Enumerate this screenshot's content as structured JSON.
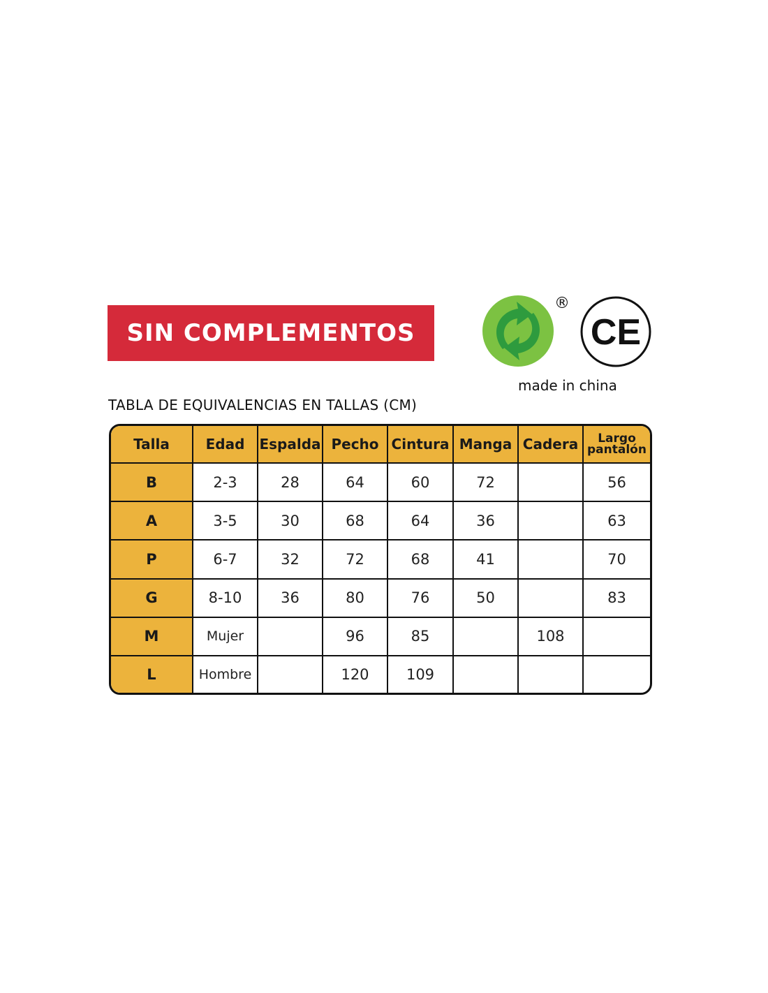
{
  "banner": {
    "label": "SIN COMPLEMENTOS",
    "color": "#d52a3a"
  },
  "logos": {
    "green_dot": {
      "icon": "green-dot-recycling-icon",
      "registered": "®"
    },
    "ce": {
      "icon": "ce-mark-icon",
      "label": "CE"
    },
    "origin": "made in china"
  },
  "table_title": "TABLA DE EQUIVALENCIAS EN TALLAS (CM)",
  "table": {
    "header_color": "#ecb33c",
    "headers": [
      "Talla",
      "Edad",
      "Espalda",
      "Pecho",
      "Cintura",
      "Manga",
      "Cadera",
      "Largo pantalón"
    ],
    "rows": [
      [
        "B",
        "2-3",
        "28",
        "64",
        "60",
        "72",
        "",
        "56"
      ],
      [
        "A",
        "3-5",
        "30",
        "68",
        "64",
        "36",
        "",
        "63"
      ],
      [
        "P",
        "6-7",
        "32",
        "72",
        "68",
        "41",
        "",
        "70"
      ],
      [
        "G",
        "8-10",
        "36",
        "80",
        "76",
        "50",
        "",
        "83"
      ],
      [
        "M",
        "Mujer",
        "",
        "96",
        "85",
        "",
        "108",
        ""
      ],
      [
        "L",
        "Hombre",
        "",
        "120",
        "109",
        "",
        "",
        ""
      ]
    ]
  }
}
